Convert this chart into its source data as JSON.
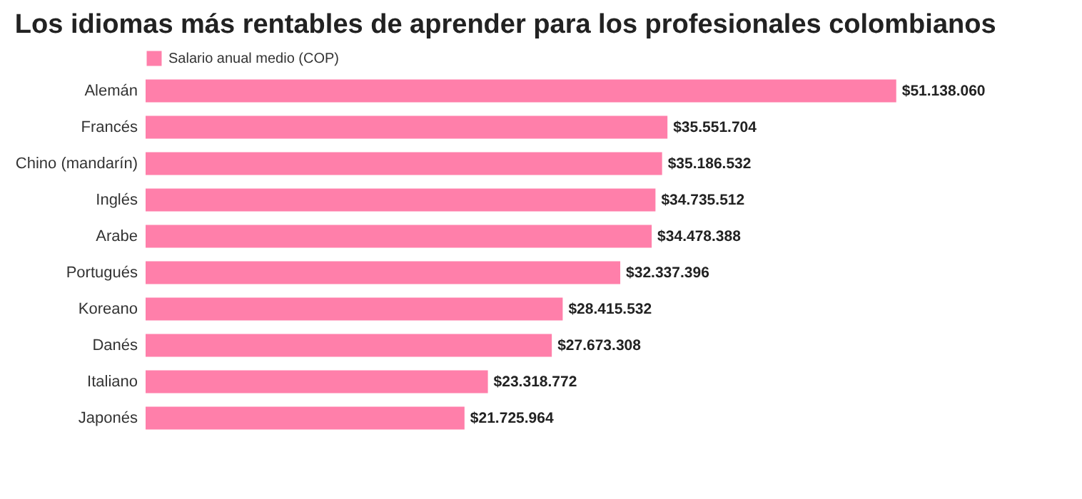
{
  "chart_data": {
    "type": "bar",
    "orientation": "horizontal",
    "title": "Los idiomas más rentables de aprender para los profesionales colombianos",
    "categories": [
      "Alemán",
      "Francés",
      "Chino (mandarín)",
      "Inglés",
      "Arabe",
      "Portugués",
      "Koreano",
      "Danés",
      "Italiano",
      "Japonés"
    ],
    "series": [
      {
        "name": "Salario anual medio (COP)",
        "color": "#ff7faa",
        "values": [
          51138060,
          35551704,
          35186532,
          34735512,
          34478388,
          32337396,
          28415532,
          27673308,
          23318772,
          21725964
        ],
        "value_labels": [
          "$51.138.060",
          "$35.551.704",
          "$35.186.532",
          "$34.735.512",
          "$34.478.388",
          "$32.337.396",
          "$28.415.532",
          "$27.673.308",
          "$23.318.772",
          "$21.725.964"
        ]
      }
    ],
    "legend": "top left"
  }
}
